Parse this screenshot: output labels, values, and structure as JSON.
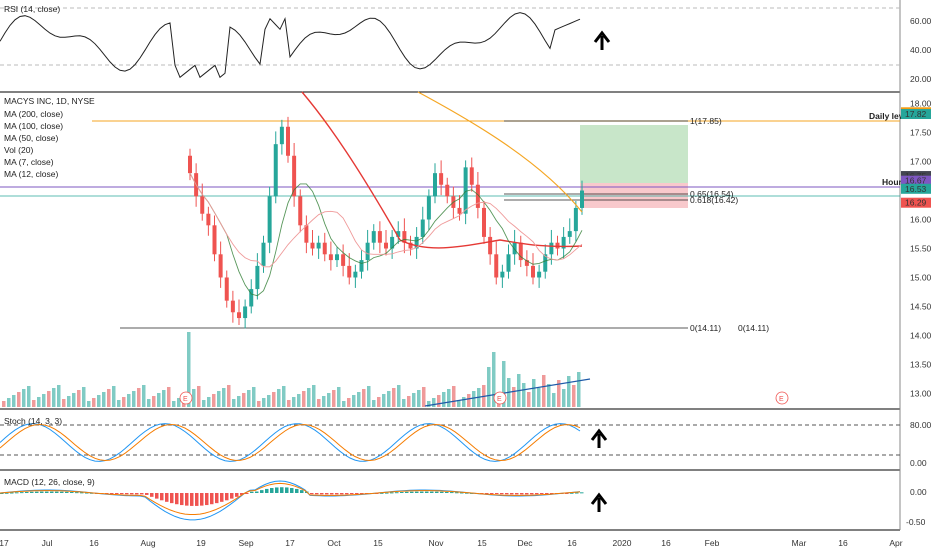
{
  "rsi": {
    "label": "RSI (14, close)",
    "ticks": [
      "60.00",
      "40.00",
      "20.00"
    ]
  },
  "price": {
    "legend": [
      "MACYS INC, 1D, NYSE",
      "MA (200, close)",
      "MA (100, close)",
      "MA (50, close)",
      "Vol (20)",
      "MA (7, close)",
      "MA (12, close)"
    ],
    "ticks": [
      "18.00",
      "17.50",
      "17.00",
      "16.50",
      "16.00",
      "15.50",
      "15.00",
      "14.50",
      "14.00",
      "13.50",
      "13.00"
    ],
    "right_labels": [
      {
        "text": "17.85",
        "color": "#f39c12",
        "value": 17.85
      },
      {
        "text": "17.82",
        "color": "#26a69a",
        "value": 17.82
      },
      {
        "text": "16.75",
        "color": "#434651",
        "value": 16.75
      },
      {
        "text": "16.67",
        "color": "#7e57c2",
        "value": 16.67
      },
      {
        "text": "16.53",
        "color": "#26a69a",
        "value": 16.53
      },
      {
        "text": "16.29",
        "color": "#ef5350",
        "value": 16.29
      }
    ],
    "annotations": {
      "daily_level": "Daily level",
      "hourly": "Hourly"
    },
    "fib_labels": [
      "1(17.85)",
      "0.65(16.54)",
      "0.618(16.42)",
      "0(14.11)",
      "0(14.11)"
    ],
    "event_marker": "E"
  },
  "stoch": {
    "label": "Stoch (14, 3, 3)",
    "ticks": [
      "80.00",
      "0.00"
    ]
  },
  "macd": {
    "label": "MACD (12, 26, close, 9)",
    "ticks": [
      "0.00",
      "-0.50"
    ]
  },
  "x_axis": [
    "17",
    "Jul",
    "16",
    "Aug",
    "19",
    "Sep",
    "17",
    "Oct",
    "15",
    "Nov",
    "15",
    "Dec",
    "16",
    "2020",
    "16",
    "Feb",
    "Mar",
    "16",
    "Apr"
  ],
  "colors": {
    "up": "#26a69a",
    "down": "#ef5350",
    "ma_red": "#e53935",
    "ma_orange": "#f5a623",
    "daily_line": "#f5a623",
    "hourly_line": "#7e57c2"
  },
  "arrows": [
    "up-arrow",
    "up-arrow",
    "up-arrow"
  ],
  "chart_data": {
    "type": "candlestick",
    "title": "MACYS INC, 1D, NYSE",
    "ylim": [
      12.8,
      18.2
    ],
    "levels": {
      "daily": 17.85,
      "hourly": 16.75,
      "support": 14.11,
      "fib_065": 16.54,
      "fib_0618": 16.42
    },
    "close_series": [
      16.8,
      16.4,
      16.1,
      15.9,
      15.4,
      15.0,
      14.6,
      14.4,
      14.3,
      14.5,
      14.8,
      15.2,
      15.6,
      16.4,
      17.3,
      17.6,
      17.1,
      16.4,
      15.9,
      15.6,
      15.5,
      15.6,
      15.4,
      15.3,
      15.4,
      15.2,
      15.0,
      15.1,
      15.3,
      15.6,
      15.8,
      15.6,
      15.5,
      15.7,
      15.8,
      15.6,
      15.5,
      15.7,
      16.0,
      16.4,
      16.8,
      16.6,
      16.4,
      16.2,
      16.1,
      16.9,
      16.6,
      16.2,
      15.7,
      15.4,
      15.0,
      15.1,
      15.4,
      15.6,
      15.3,
      15.2,
      15.0,
      15.1,
      15.4,
      15.6,
      15.5,
      15.7,
      15.8,
      16.2,
      16.5
    ]
  }
}
